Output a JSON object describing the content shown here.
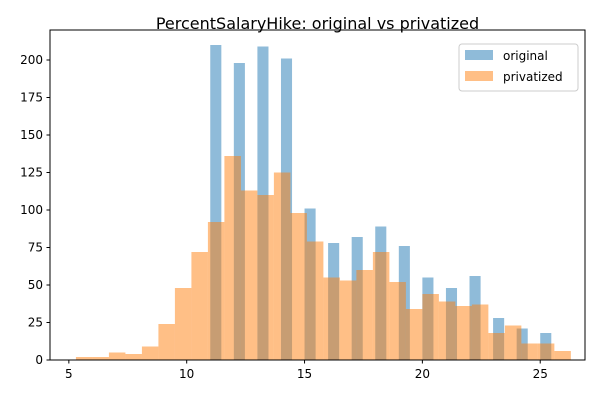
{
  "chart_data": {
    "type": "bar",
    "title": "PercentSalaryHike: original vs privatized",
    "xlabel": "",
    "ylabel": "",
    "xlim": [
      4.2,
      26.9
    ],
    "ylim": [
      0,
      220
    ],
    "xticks": [
      5,
      10,
      15,
      20,
      25
    ],
    "yticks": [
      0,
      25,
      50,
      75,
      100,
      125,
      150,
      175,
      200
    ],
    "grid": false,
    "legend_position": "top-right",
    "colors": {
      "original": "#1f77b4",
      "privatized": "#ff7f0e"
    },
    "opacity": 0.5,
    "series": [
      {
        "name": "original",
        "bars": [
          {
            "x0": 11.0,
            "x1": 11.47,
            "value": 210
          },
          {
            "x0": 12.0,
            "x1": 12.47,
            "value": 198
          },
          {
            "x0": 13.0,
            "x1": 13.47,
            "value": 209
          },
          {
            "x0": 14.0,
            "x1": 14.47,
            "value": 201
          },
          {
            "x0": 15.0,
            "x1": 15.47,
            "value": 101
          },
          {
            "x0": 16.0,
            "x1": 16.47,
            "value": 78
          },
          {
            "x0": 17.0,
            "x1": 17.47,
            "value": 82
          },
          {
            "x0": 18.0,
            "x1": 18.47,
            "value": 89
          },
          {
            "x0": 19.0,
            "x1": 19.47,
            "value": 76
          },
          {
            "x0": 20.0,
            "x1": 20.47,
            "value": 55
          },
          {
            "x0": 21.0,
            "x1": 21.47,
            "value": 48
          },
          {
            "x0": 22.0,
            "x1": 22.47,
            "value": 56
          },
          {
            "x0": 23.0,
            "x1": 23.47,
            "value": 28
          },
          {
            "x0": 24.0,
            "x1": 24.47,
            "value": 21
          },
          {
            "x0": 25.0,
            "x1": 25.47,
            "value": 18
          }
        ]
      },
      {
        "name": "privatized",
        "bars": [
          {
            "x0": 5.3,
            "x1": 6.0,
            "value": 2
          },
          {
            "x0": 6.0,
            "x1": 6.7,
            "value": 2
          },
          {
            "x0": 6.7,
            "x1": 7.4,
            "value": 5
          },
          {
            "x0": 7.4,
            "x1": 8.1,
            "value": 4
          },
          {
            "x0": 8.1,
            "x1": 8.8,
            "value": 9
          },
          {
            "x0": 8.8,
            "x1": 9.5,
            "value": 24
          },
          {
            "x0": 9.5,
            "x1": 10.2,
            "value": 48
          },
          {
            "x0": 10.2,
            "x1": 10.9,
            "value": 72
          },
          {
            "x0": 10.9,
            "x1": 11.6,
            "value": 92
          },
          {
            "x0": 11.6,
            "x1": 12.3,
            "value": 136
          },
          {
            "x0": 12.3,
            "x1": 13.0,
            "value": 113
          },
          {
            "x0": 13.0,
            "x1": 13.7,
            "value": 110
          },
          {
            "x0": 13.7,
            "x1": 14.4,
            "value": 125
          },
          {
            "x0": 14.4,
            "x1": 15.1,
            "value": 98
          },
          {
            "x0": 15.1,
            "x1": 15.8,
            "value": 79
          },
          {
            "x0": 15.8,
            "x1": 16.5,
            "value": 55
          },
          {
            "x0": 16.5,
            "x1": 17.2,
            "value": 53
          },
          {
            "x0": 17.2,
            "x1": 17.9,
            "value": 60
          },
          {
            "x0": 17.9,
            "x1": 18.6,
            "value": 72
          },
          {
            "x0": 18.6,
            "x1": 19.3,
            "value": 52
          },
          {
            "x0": 19.3,
            "x1": 20.0,
            "value": 34
          },
          {
            "x0": 20.0,
            "x1": 20.7,
            "value": 44
          },
          {
            "x0": 20.7,
            "x1": 21.4,
            "value": 39
          },
          {
            "x0": 21.4,
            "x1": 22.1,
            "value": 36
          },
          {
            "x0": 22.1,
            "x1": 22.8,
            "value": 37
          },
          {
            "x0": 22.8,
            "x1": 23.5,
            "value": 18
          },
          {
            "x0": 23.5,
            "x1": 24.2,
            "value": 23
          },
          {
            "x0": 24.2,
            "x1": 24.9,
            "value": 11
          },
          {
            "x0": 24.9,
            "x1": 25.6,
            "value": 11
          },
          {
            "x0": 25.6,
            "x1": 26.3,
            "value": 6
          }
        ]
      }
    ]
  }
}
